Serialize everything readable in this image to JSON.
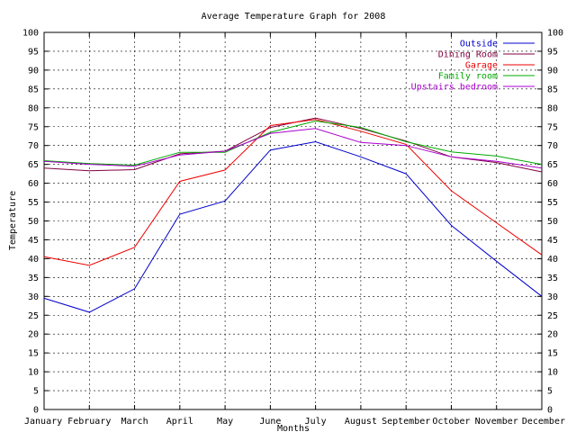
{
  "chart_data": {
    "type": "line",
    "title": "Average Temperature Graph for 2008",
    "xlabel": "Months",
    "ylabel": "Temperature",
    "categories": [
      "January",
      "February",
      "March",
      "April",
      "May",
      "June",
      "July",
      "August",
      "September",
      "October",
      "November",
      "December"
    ],
    "ylim": [
      0,
      100
    ],
    "yticks": [
      0,
      5,
      10,
      15,
      20,
      25,
      30,
      35,
      40,
      45,
      50,
      55,
      60,
      65,
      70,
      75,
      80,
      85,
      90,
      95,
      100
    ],
    "grid": true,
    "legend_position": "top-right",
    "series": [
      {
        "name": "Outside",
        "color": "#0000cc",
        "values": [
          29.5,
          25.8,
          32,
          51.8,
          55.3,
          68.8,
          71,
          67,
          62.5,
          48.8,
          39.3,
          30
        ]
      },
      {
        "name": "Dining Room",
        "color": "#800040",
        "values": [
          64,
          63.3,
          63.6,
          67.8,
          68.5,
          74.8,
          77.3,
          74.5,
          71.2,
          67,
          65.5,
          63
        ]
      },
      {
        "name": "Garage",
        "color": "#ee0000",
        "values": [
          40.5,
          38.2,
          43,
          60.5,
          63.5,
          75.3,
          76.9,
          73.8,
          70.3,
          58,
          49.5,
          41
        ]
      },
      {
        "name": "Family room",
        "color": "#00aa00",
        "values": [
          66,
          65.2,
          64.8,
          68.2,
          68.2,
          73.5,
          76.5,
          74.8,
          71,
          68.3,
          67.2,
          65
        ]
      },
      {
        "name": "Upstairs bedroom",
        "color": "#aa00cc",
        "values": [
          65.8,
          65,
          64.5,
          67.5,
          68.5,
          73.2,
          74.5,
          70.8,
          70,
          67,
          65.8,
          64
        ]
      }
    ]
  }
}
